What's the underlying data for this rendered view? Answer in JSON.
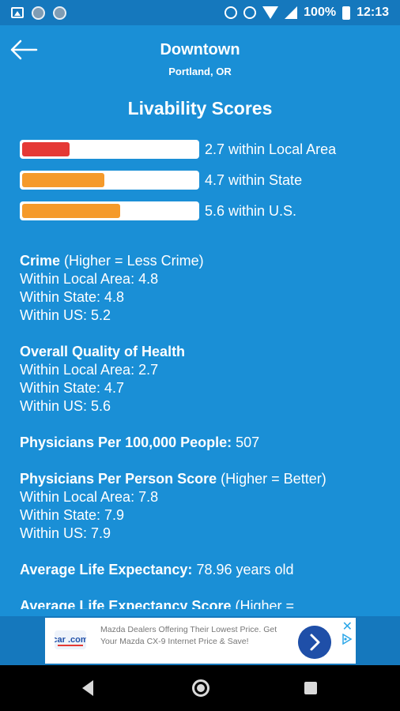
{
  "status_bar": {
    "battery": "100%",
    "time": "12:13"
  },
  "header": {
    "title": "Downtown",
    "subtitle": "Portland, OR"
  },
  "livability": {
    "title": "Livability Scores",
    "scores": [
      {
        "label": "2.7 within Local Area",
        "value": 2.7,
        "max": 10,
        "color": "#e53935"
      },
      {
        "label": "4.7 within State",
        "value": 4.7,
        "max": 10,
        "color": "#f59a2b"
      },
      {
        "label": "5.6 within U.S.",
        "value": 5.6,
        "max": 10,
        "color": "#f59a2b"
      }
    ]
  },
  "details": {
    "crime": {
      "heading": "Crime",
      "note": " (Higher = Less Crime)",
      "lines": [
        "Within Local Area: 4.8",
        "Within State: 4.8",
        "Within US: 5.2"
      ]
    },
    "health": {
      "heading": "Overall Quality of Health",
      "lines": [
        "Within Local Area: 2.7",
        "Within State: 4.7",
        "Within US: 5.6"
      ]
    },
    "physicians": {
      "heading": "Physicians Per 100,000 People:",
      "value": " 507"
    },
    "physicians_score": {
      "heading": "Physicians Per Person Score",
      "note": " (Higher = Better)",
      "lines": [
        "Within Local Area: 7.8",
        "Within State: 7.9",
        "Within US: 7.9"
      ]
    },
    "life_expectancy": {
      "heading": "Average Life Expectancy:",
      "value": " 78.96 years old"
    },
    "life_expectancy_score": {
      "heading": "Average Life Expectancy Score",
      "note": " (Higher ="
    }
  },
  "ad": {
    "logo_text": "car .com",
    "text": "Mazda Dealers Offering Their Lowest Price. Get Your Mazda CX-9 Internet Price & Save!",
    "close": "✕"
  },
  "icons": {
    "back": "arrow-left-icon",
    "ad_go": "chevron-right-icon"
  }
}
